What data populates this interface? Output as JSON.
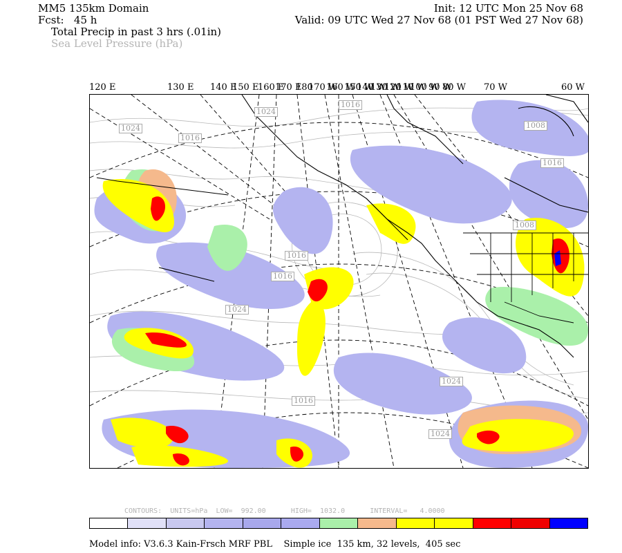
{
  "header": {
    "domain": "MM5 135km Domain",
    "fcst_label": "Fcst:",
    "fcst_value": "45 h",
    "init": "Init: 12 UTC Mon 25 Nov 68",
    "valid": "Valid: 09 UTC Wed 27 Nov 68 (01 PST Wed 27 Nov 68)",
    "field1": "Total Precip in past 3 hrs (.01in)",
    "field2": "Sea Level Pressure (hPa)"
  },
  "longitude_labels": [
    "120 E",
    "130 E",
    "140 E",
    "150 E",
    "160 E",
    "170 E",
    "180",
    "170 W",
    "160 W",
    "150 W",
    "140 W",
    "130 W",
    "120 W",
    "110 W",
    "100 W",
    "90 W",
    "80 W",
    "70 W",
    "60 W"
  ],
  "pressure_labels": [
    "1024",
    "1016",
    "1008",
    "1024",
    "1016",
    "1008",
    "1016",
    "1016",
    "1024",
    "1016",
    "1024",
    "1016",
    "1024"
  ],
  "contour_info": "CONTOURS:  UNITS=hPa  LOW=  992.00      HIGH=  1032.0      INTERVAL=   4.0000",
  "colorbar_colors": [
    "#ffffff",
    "#e0e0f8",
    "#c8c8f0",
    "#b4b4f0",
    "#a8a8ec",
    "#aaaaf0",
    "#aaf0aa",
    "#f5b98c",
    "#ffff00",
    "#ffff00",
    "#ff0000",
    "#f00000",
    "#0000ff"
  ],
  "model_info": "Model info: V3.6.3 Kain-Frsch MRF PBL    Simple ice  135 km, 32 levels,  405 sec"
}
